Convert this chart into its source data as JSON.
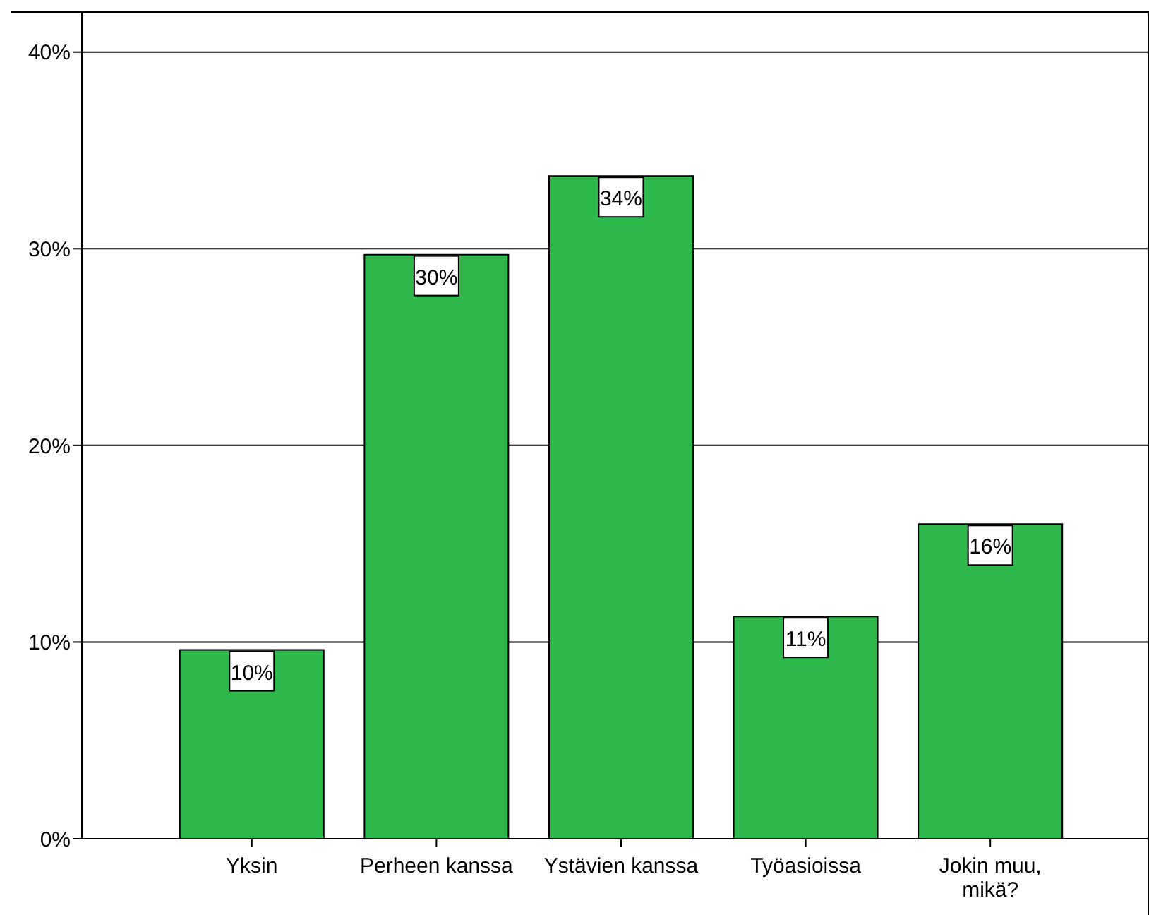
{
  "chart_data": {
    "type": "bar",
    "categories": [
      "Yksin",
      "Perheen kanssa",
      "Ystävien kanssa",
      "Työasioissa",
      "Jokin muu, mikä?"
    ],
    "values": [
      9.6,
      29.7,
      33.7,
      11.3,
      16.0
    ],
    "value_labels": [
      "10%",
      "30%",
      "34%",
      "11%",
      "16%"
    ],
    "color": "#2eb84b",
    "ylim": [
      0,
      42
    ],
    "yticks": [
      {
        "value": 0,
        "label": "0%"
      },
      {
        "value": 10,
        "label": "10%"
      },
      {
        "value": 20,
        "label": "20%"
      },
      {
        "value": 30,
        "label": "30%"
      },
      {
        "value": 40,
        "label": "40%"
      }
    ],
    "grid": "y"
  }
}
